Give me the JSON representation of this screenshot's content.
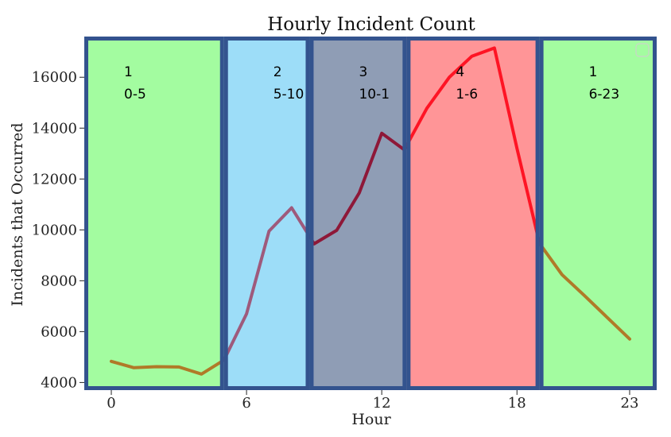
{
  "chart_data": {
    "type": "line",
    "title": "Hourly Incident Count",
    "xlabel": "Hour",
    "ylabel": "Incidents that Occurred",
    "x_ticks": [
      0,
      6,
      12,
      18,
      23
    ],
    "y_ticks": [
      4000,
      6000,
      8000,
      10000,
      12000,
      14000,
      16000
    ],
    "xlim": [
      -1.2,
      24.2
    ],
    "ylim": [
      3700,
      17600
    ],
    "grid": false,
    "series": [
      {
        "x": [
          0,
          1,
          2,
          3,
          4,
          5,
          6,
          7,
          8,
          9,
          10,
          11,
          12,
          13,
          14,
          15,
          16,
          17,
          18,
          19,
          20,
          21,
          22,
          23
        ],
        "values": [
          4830,
          4580,
          4620,
          4610,
          4330,
          4880,
          6700,
          9950,
          10870,
          9450,
          9980,
          11450,
          13800,
          13150,
          14780,
          16000,
          16830,
          17150,
          13200,
          9470,
          8240,
          7410,
          6560,
          5710
        ]
      }
    ],
    "bands": [
      {
        "from": -1.2,
        "to": 5,
        "cluster": "1",
        "range": "0-5",
        "fill": "#a3fca0",
        "line_color": "#b07a28"
      },
      {
        "from": 5,
        "to": 8.8,
        "cluster": "2",
        "range": "5-10",
        "fill": "#9dddf8",
        "line_color": "#9e5a7c"
      },
      {
        "from": 8.8,
        "to": 13.1,
        "cluster": "3",
        "range": "10-1",
        "fill": "#8f9db5",
        "line_color": "#8e1838"
      },
      {
        "from": 13.1,
        "to": 19,
        "cluster": "4",
        "range": "1-6",
        "fill": "#ff9597",
        "line_color": "#fe1424"
      },
      {
        "from": 19,
        "to": 24.2,
        "cluster": "1",
        "range": "6-23",
        "fill": "#a3fca0",
        "line_color": "#b07a28"
      }
    ],
    "frame_color": "#33538e"
  }
}
